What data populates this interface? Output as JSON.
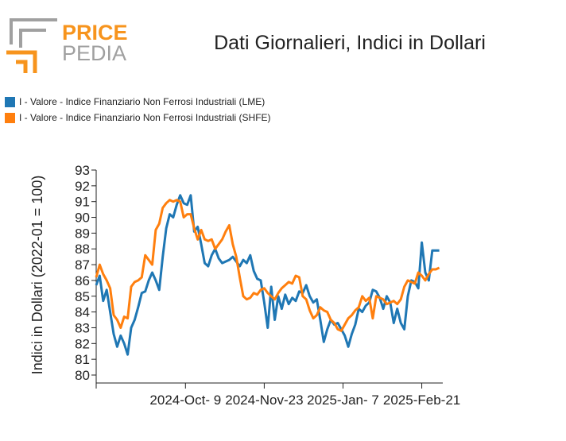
{
  "logo": {
    "top_word": "PRICE",
    "bottom_word": "PEDIA",
    "accent_color": "#f7941d",
    "gray_color": "#a0a0a0"
  },
  "chart_data": {
    "type": "line",
    "title": "Dati Giornalieri, Indici in Dollari",
    "xlabel": "",
    "ylabel": "Indici in Dollari (2022-01 = 100)",
    "ylim": [
      80,
      93
    ],
    "yticks": [
      80,
      81,
      82,
      83,
      84,
      85,
      86,
      87,
      88,
      89,
      90,
      91,
      92,
      93
    ],
    "xlim": [
      "2024-08-19",
      "2025-03-05"
    ],
    "xticks": [
      {
        "date": "2024-08-19",
        "label": ""
      },
      {
        "date": "2024-10-09",
        "label": "2024-Oct- 9"
      },
      {
        "date": "2024-11-23",
        "label": "2024-Nov-23"
      },
      {
        "date": "2025-01-07",
        "label": "2025-Jan- 7"
      },
      {
        "date": "2025-02-21",
        "label": "2025-Feb-21"
      }
    ],
    "grid": false,
    "legend_position": "top-left",
    "series": [
      {
        "name": "I - Valore - Indice Finanziario Non Ferrosi Industriali (LME)",
        "color": "#1f77b4",
        "x": [
          "2024-08-19",
          "2024-08-21",
          "2024-08-23",
          "2024-08-25",
          "2024-08-27",
          "2024-08-29",
          "2024-08-31",
          "2024-09-02",
          "2024-09-04",
          "2024-09-06",
          "2024-09-08",
          "2024-09-10",
          "2024-09-12",
          "2024-09-14",
          "2024-09-16",
          "2024-09-18",
          "2024-09-20",
          "2024-09-22",
          "2024-09-24",
          "2024-09-26",
          "2024-09-28",
          "2024-09-30",
          "2024-10-02",
          "2024-10-04",
          "2024-10-06",
          "2024-10-08",
          "2024-10-10",
          "2024-10-12",
          "2024-10-14",
          "2024-10-16",
          "2024-10-18",
          "2024-10-20",
          "2024-10-22",
          "2024-10-24",
          "2024-10-26",
          "2024-10-28",
          "2024-10-30",
          "2024-11-01",
          "2024-11-03",
          "2024-11-05",
          "2024-11-07",
          "2024-11-09",
          "2024-11-11",
          "2024-11-13",
          "2024-11-15",
          "2024-11-17",
          "2024-11-19",
          "2024-11-21",
          "2024-11-23",
          "2024-11-25",
          "2024-11-27",
          "2024-11-29",
          "2024-12-01",
          "2024-12-03",
          "2024-12-05",
          "2024-12-07",
          "2024-12-09",
          "2024-12-11",
          "2024-12-13",
          "2024-12-15",
          "2024-12-17",
          "2024-12-19",
          "2024-12-21",
          "2024-12-23",
          "2024-12-25",
          "2024-12-27",
          "2024-12-29",
          "2024-12-31",
          "2025-01-02",
          "2025-01-04",
          "2025-01-06",
          "2025-01-08",
          "2025-01-10",
          "2025-01-12",
          "2025-01-14",
          "2025-01-16",
          "2025-01-18",
          "2025-01-20",
          "2025-01-22",
          "2025-01-24",
          "2025-01-26",
          "2025-01-28",
          "2025-01-30",
          "2025-02-01",
          "2025-02-03",
          "2025-02-05",
          "2025-02-07",
          "2025-02-09",
          "2025-02-11",
          "2025-02-13",
          "2025-02-15",
          "2025-02-17",
          "2025-02-19",
          "2025-02-21",
          "2025-02-23",
          "2025-02-25",
          "2025-02-27",
          "2025-03-01",
          "2025-03-03"
        ],
        "y": [
          85.7,
          86.3,
          84.7,
          85.4,
          84.0,
          82.6,
          81.8,
          82.5,
          82.0,
          81.3,
          83.0,
          83.5,
          84.3,
          85.2,
          85.3,
          86.0,
          86.5,
          86.0,
          85.4,
          87.5,
          89.3,
          90.2,
          90.0,
          90.8,
          91.4,
          90.9,
          90.8,
          91.4,
          89.1,
          89.4,
          88.3,
          87.1,
          86.9,
          87.6,
          88.0,
          87.4,
          87.1,
          87.2,
          87.3,
          87.5,
          87.2,
          86.9,
          87.3,
          87.1,
          87.6,
          86.6,
          86.1,
          86.0,
          84.6,
          83.0,
          85.6,
          83.5,
          85.0,
          84.2,
          85.1,
          84.5,
          84.9,
          84.7,
          85.3,
          85.2,
          85.7,
          85.0,
          84.6,
          84.8,
          83.5,
          82.1,
          82.9,
          83.5,
          83.2,
          83.3,
          82.9,
          82.5,
          81.8,
          82.6,
          83.2,
          84.2,
          84.0,
          84.4,
          84.6,
          85.4,
          85.3,
          84.9,
          84.2,
          85.0,
          84.6,
          83.3,
          84.2,
          83.3,
          82.9,
          85.0,
          86.0,
          85.9,
          85.5,
          88.4,
          86.5,
          86.0,
          87.9,
          87.9,
          87.9
        ]
      },
      {
        "name": "I - Valore - Indice Finanziario Non Ferrosi Industriali (SHFE)",
        "color": "#ff7f0e",
        "x": [
          "2024-08-19",
          "2024-08-21",
          "2024-08-23",
          "2024-08-25",
          "2024-08-27",
          "2024-08-29",
          "2024-08-31",
          "2024-09-02",
          "2024-09-04",
          "2024-09-06",
          "2024-09-08",
          "2024-09-10",
          "2024-09-12",
          "2024-09-14",
          "2024-09-16",
          "2024-09-18",
          "2024-09-20",
          "2024-09-22",
          "2024-09-24",
          "2024-09-26",
          "2024-09-28",
          "2024-09-30",
          "2024-10-02",
          "2024-10-04",
          "2024-10-06",
          "2024-10-08",
          "2024-10-10",
          "2024-10-12",
          "2024-10-14",
          "2024-10-16",
          "2024-10-18",
          "2024-10-20",
          "2024-10-22",
          "2024-10-24",
          "2024-10-26",
          "2024-10-28",
          "2024-10-30",
          "2024-11-01",
          "2024-11-03",
          "2024-11-05",
          "2024-11-07",
          "2024-11-09",
          "2024-11-11",
          "2024-11-13",
          "2024-11-15",
          "2024-11-17",
          "2024-11-19",
          "2024-11-21",
          "2024-11-23",
          "2024-11-25",
          "2024-11-27",
          "2024-11-29",
          "2024-12-01",
          "2024-12-03",
          "2024-12-05",
          "2024-12-07",
          "2024-12-09",
          "2024-12-11",
          "2024-12-13",
          "2024-12-15",
          "2024-12-17",
          "2024-12-19",
          "2024-12-21",
          "2024-12-23",
          "2024-12-25",
          "2024-12-27",
          "2024-12-29",
          "2024-12-31",
          "2025-01-02",
          "2025-01-04",
          "2025-01-06",
          "2025-01-08",
          "2025-01-10",
          "2025-01-12",
          "2025-01-14",
          "2025-01-16",
          "2025-01-18",
          "2025-01-20",
          "2025-01-22",
          "2025-01-24",
          "2025-01-26",
          "2025-01-28",
          "2025-01-30",
          "2025-02-01",
          "2025-02-03",
          "2025-02-05",
          "2025-02-07",
          "2025-02-09",
          "2025-02-11",
          "2025-02-13",
          "2025-02-15",
          "2025-02-17",
          "2025-02-19",
          "2025-02-21",
          "2025-02-23",
          "2025-02-25",
          "2025-02-27",
          "2025-03-01",
          "2025-03-03"
        ],
        "y": [
          86.2,
          87.0,
          86.4,
          86.0,
          85.5,
          83.8,
          83.5,
          83.0,
          83.7,
          83.6,
          85.6,
          85.9,
          86.0,
          86.2,
          87.6,
          87.3,
          87.0,
          89.2,
          89.6,
          90.6,
          90.9,
          91.1,
          91.0,
          91.1,
          91.0,
          90.0,
          90.2,
          90.2,
          89.3,
          88.6,
          89.2,
          88.6,
          88.5,
          88.6,
          88.0,
          88.3,
          88.6,
          89.1,
          89.5,
          88.3,
          87.5,
          86.2,
          85.0,
          84.8,
          84.9,
          85.2,
          85.1,
          85.4,
          85.5,
          85.2,
          85.0,
          84.8,
          85.2,
          85.5,
          85.7,
          85.9,
          85.8,
          86.3,
          86.2,
          85.0,
          84.8,
          84.1,
          83.6,
          83.8,
          84.3,
          84.1,
          84.0,
          83.5,
          83.3,
          82.9,
          82.8,
          83.2,
          83.6,
          83.8,
          84.1,
          84.3,
          85.0,
          84.7,
          84.9,
          83.6,
          85.0,
          84.9,
          84.8,
          84.5,
          84.6,
          84.7,
          84.5,
          84.8,
          85.6,
          86.0,
          85.9,
          85.8,
          86.5,
          86.3,
          86.0,
          86.4,
          86.7,
          86.7,
          86.8
        ]
      }
    ]
  }
}
